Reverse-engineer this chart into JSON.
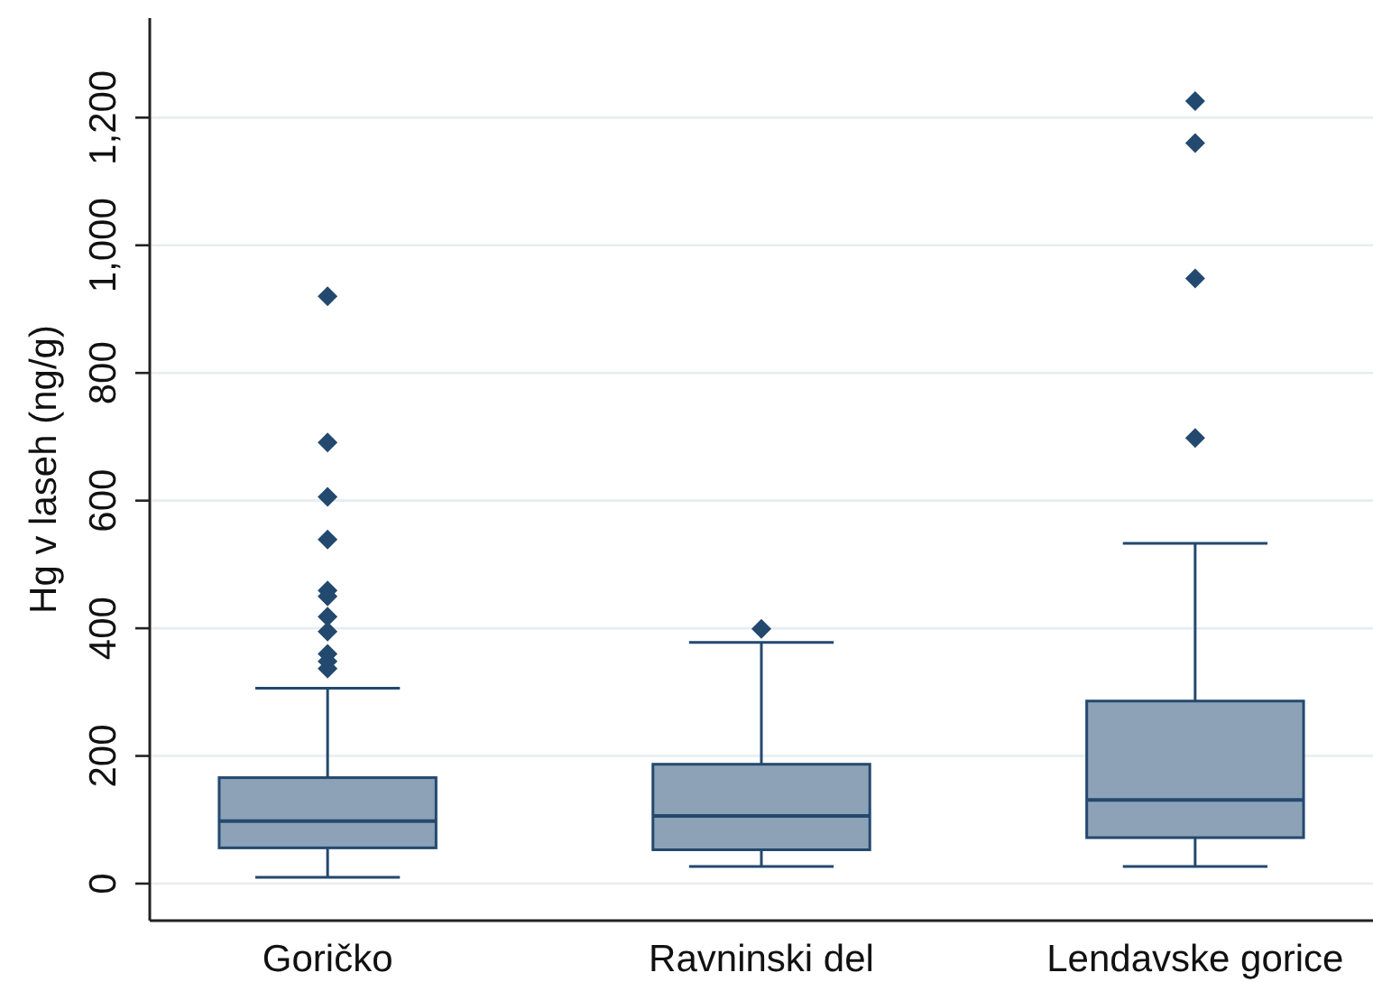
{
  "chart_data": {
    "type": "box",
    "ylabel": "Hg v laseh (ng/g)",
    "categories": [
      "Goričko",
      "Ravninski del",
      "Lendavske gorice"
    ],
    "boxes": [
      {
        "low": 10,
        "q1": 56,
        "median": 98,
        "q3": 166,
        "high": 306,
        "outliers": [
          920,
          691,
          606,
          539,
          459,
          450,
          418,
          395,
          360,
          348,
          337
        ]
      },
      {
        "low": 27,
        "q1": 53,
        "median": 106,
        "q3": 187,
        "high": 378,
        "outliers": [
          399
        ]
      },
      {
        "low": 27,
        "q1": 72,
        "median": 131,
        "q3": 286,
        "high": 533,
        "outliers": [
          1226,
          1160,
          948,
          698
        ]
      }
    ],
    "color": "#8da2b7",
    "marker": "diamond",
    "grid": "y",
    "ylim": [
      -58,
      1356
    ],
    "yticks": [
      0,
      200,
      400,
      600,
      800,
      {
        "value": 1000,
        "label": "1,000"
      },
      {
        "value": 1200,
        "label": "1,200"
      }
    ]
  }
}
